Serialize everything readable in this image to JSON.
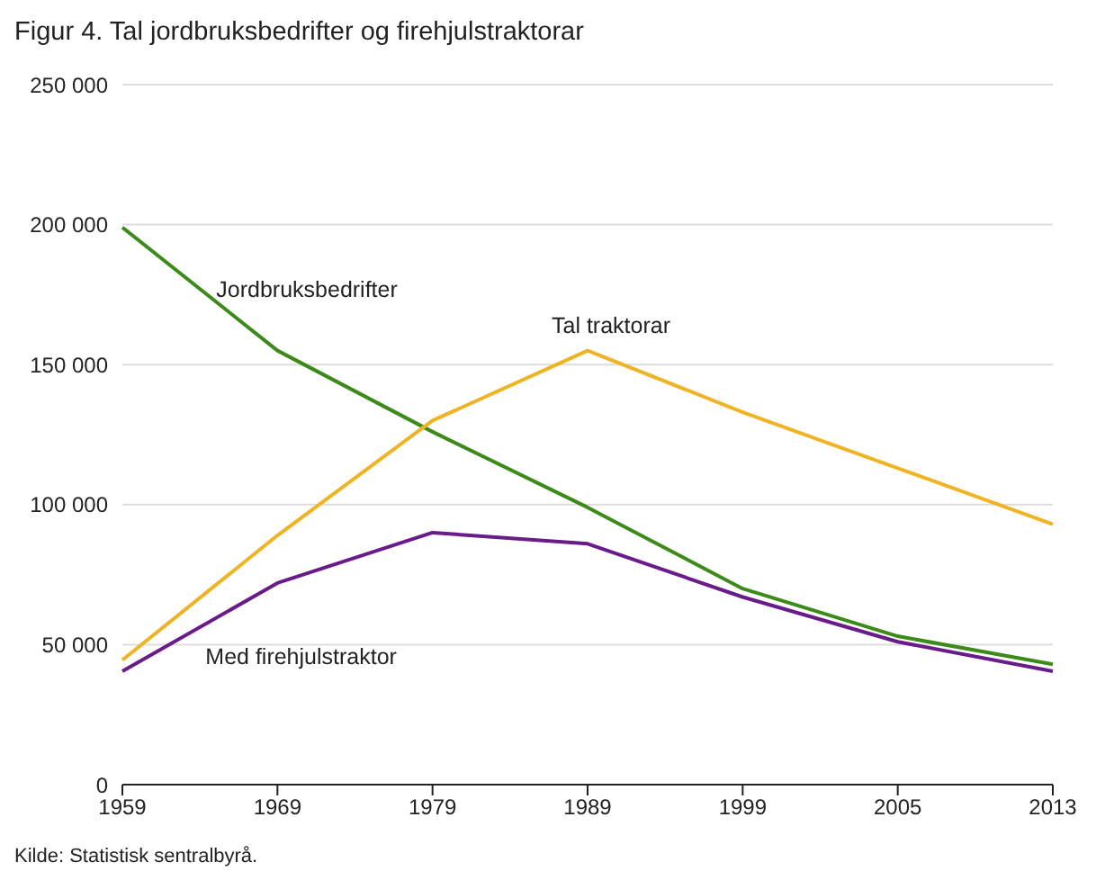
{
  "chart_data": {
    "type": "line",
    "title": "Figur 4. Tal jordbruksbedrifter og firehjulstraktorar",
    "categories": [
      "1959",
      "1969",
      "1979",
      "1989",
      "1999",
      "2005",
      "2013"
    ],
    "series": [
      {
        "name": "Jordbruksbedrifter",
        "color": "#3b8a1a",
        "values": [
          199000,
          155000,
          126000,
          99000,
          70000,
          53000,
          43000
        ]
      },
      {
        "name": "Tal traktorar",
        "color": "#f0b323",
        "values": [
          44500,
          89000,
          130000,
          155000,
          133000,
          113000,
          93000
        ]
      },
      {
        "name": "Med firehjulstraktor",
        "color": "#6a1b8a",
        "values": [
          40500,
          72000,
          90000,
          86000,
          67000,
          51000,
          40500
        ]
      }
    ],
    "ylim": [
      0,
      250000
    ],
    "yticks": [
      {
        "value": 0,
        "label": "0"
      },
      {
        "value": 50000,
        "label": "50 000"
      },
      {
        "value": 100000,
        "label": "100 000"
      },
      {
        "value": 150000,
        "label": "150 000"
      },
      {
        "value": 200000,
        "label": "200 000"
      },
      {
        "value": 250000,
        "label": "250 000"
      }
    ],
    "grid": "y",
    "marker": "none",
    "line_style": "solid",
    "annotations": [
      "Kilde: Statistisk sentralbyrå."
    ]
  }
}
